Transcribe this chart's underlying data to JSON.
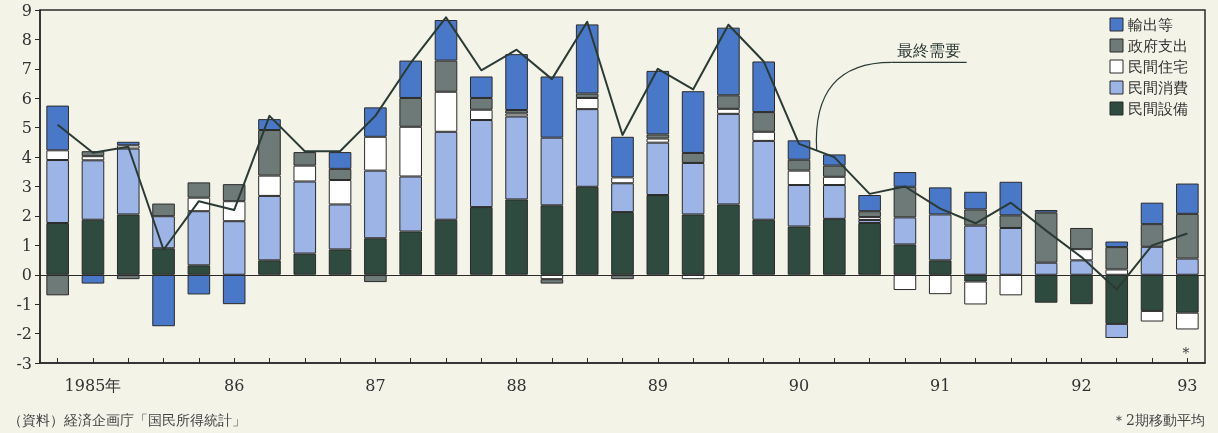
{
  "chart_data": {
    "type": "bar",
    "stacked": true,
    "categories": [
      null,
      "1985年",
      null,
      null,
      null,
      "86",
      null,
      null,
      null,
      "87",
      null,
      null,
      null,
      "88",
      null,
      null,
      null,
      "89",
      null,
      null,
      null,
      "90",
      null,
      null,
      null,
      "91",
      null,
      null,
      null,
      "92",
      null,
      null,
      "93"
    ],
    "series": [
      {
        "name": "民間設備",
        "color": "#2f4a3e",
        "values": [
          1.76,
          1.87,
          2.05,
          0.9,
          0.32,
          null,
          0.49,
          0.72,
          0.86,
          1.24,
          1.47,
          1.87,
          2.3,
          2.56,
          2.36,
          2.99,
          2.13,
          2.71,
          2.05,
          2.39,
          1.87,
          1.64,
          1.9,
          1.76,
          1.03,
          0.49,
          -0.23,
          null,
          -0.95,
          -1.0,
          -1.67,
          -1.23,
          -1.29
        ]
      },
      {
        "name": "民間消費",
        "color": "#9db4e6",
        "values": [
          2.14,
          2.02,
          2.24,
          1.09,
          1.84,
          1.82,
          2.19,
          2.45,
          1.53,
          2.3,
          1.87,
          2.99,
          2.96,
          2.82,
          2.3,
          2.64,
          0.98,
          1.78,
          1.75,
          3.08,
          2.68,
          1.41,
          1.15,
          0.1,
          0.92,
          1.56,
          1.67,
          1.59,
          0.41,
          0.49,
          -0.48,
          0.95,
          0.55
        ]
      },
      {
        "name": "民間住宅",
        "color": "#ffffff",
        "values": [
          0.33,
          0.14,
          0.11,
          null,
          0.46,
          0.68,
          0.69,
          0.54,
          0.83,
          1.15,
          1.69,
          1.36,
          0.35,
          0.1,
          -0.15,
          0.38,
          0.2,
          0.14,
          -0.15,
          0.17,
          0.31,
          0.49,
          0.28,
          0.1,
          -0.52,
          -0.66,
          -0.78,
          -0.7,
          null,
          0.38,
          0.18,
          -0.36,
          -0.57
        ]
      },
      {
        "name": "政府支出",
        "color": "#6e7a78",
        "values": [
          -0.7,
          0.17,
          -0.15,
          0.43,
          0.52,
          0.58,
          1.55,
          0.46,
          0.38,
          -0.25,
          0.98,
          1.06,
          0.4,
          0.12,
          -0.15,
          0.15,
          -0.15,
          0.14,
          0.34,
          0.46,
          0.67,
          0.37,
          0.38,
          0.2,
          1.04,
          null,
          0.55,
          0.43,
          1.7,
          0.72,
          0.76,
          0.77,
          1.52
        ]
      },
      {
        "name": "輸出等",
        "color": "#4a78c8",
        "values": [
          1.52,
          -0.3,
          0.12,
          -1.75,
          -0.67,
          -1.0,
          0.37,
          null,
          0.57,
          1.0,
          1.27,
          1.38,
          0.73,
          1.9,
          2.08,
          2.35,
          1.38,
          2.16,
          2.1,
          2.3,
          1.72,
          0.66,
          0.38,
          0.55,
          0.5,
          0.92,
          0.6,
          1.14,
          0.09,
          null,
          0.19,
          0.73,
          1.03
        ]
      },
      {
        "name": "最終需要",
        "type": "line",
        "color": "#2a3a34",
        "marker": "none",
        "line_style": "solid",
        "values": [
          5.1,
          4.15,
          4.35,
          0.85,
          2.5,
          2.2,
          5.4,
          4.2,
          4.2,
          5.4,
          7.2,
          8.75,
          6.95,
          7.65,
          6.65,
          8.6,
          4.75,
          7.0,
          6.3,
          8.5,
          7.25,
          4.45,
          4.0,
          2.75,
          3.0,
          2.25,
          1.75,
          2.45,
          1.5,
          0.6,
          -0.5,
          1.0,
          1.4
        ]
      }
    ],
    "ylim": [
      -3,
      9
    ],
    "yticks": [
      -3,
      -2,
      -1,
      0,
      1,
      2,
      3,
      4,
      5,
      6,
      7,
      8,
      9
    ],
    "grid": false,
    "legend": "top right",
    "ref_lines": [
      {
        "axis": "y",
        "value": 0
      }
    ],
    "annotations": [
      "（資料）経済企画庁「国民所得統計」",
      "＊2期移動平均",
      "＊"
    ]
  }
}
